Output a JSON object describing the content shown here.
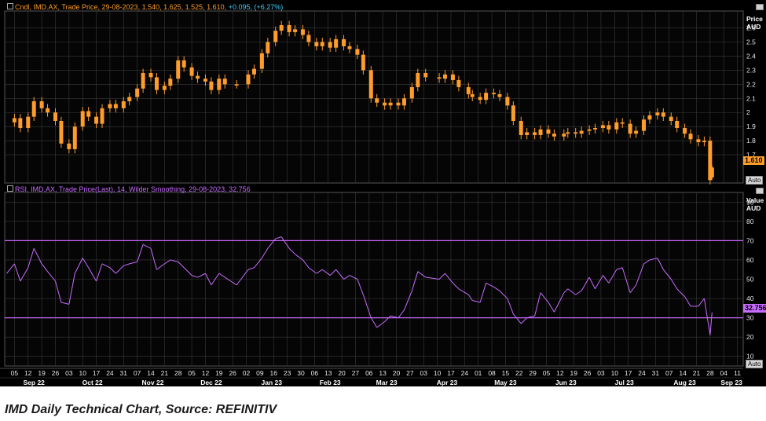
{
  "caption": "IMD Daily Technical Chart, Source: REFINITIV",
  "price_panel": {
    "legend_prefix": "Cndl, IMD.AX, Trade Price, 29-08-2023, 1.540, 1.625, 1.525, 1.610,",
    "legend_change": "+0.095, (+6.27%)",
    "axis_unit_1": "Price",
    "axis_unit_2": "AUD",
    "last_value": "1.610",
    "auto_label": "Auto"
  },
  "rsi_panel": {
    "legend": "RSI, IMD.AX, Trade Price(Last), 14, Wilder Smoothing, 29-08-2023, 32.756",
    "axis_unit_1": "Value",
    "axis_unit_2": "AUD",
    "last_value": "32.756",
    "auto_label": "Auto"
  },
  "colors": {
    "candle": "#ff9d2a",
    "rsi": "#c86bff",
    "background": "#000000",
    "grid": "#3a3a3a"
  },
  "chart_data": [
    {
      "type": "candlestick",
      "title": "",
      "ylabel": "Price AUD",
      "ylim": [
        1.5,
        2.72
      ],
      "yticks": [
        1.7,
        1.8,
        1.9,
        2,
        2.1,
        2.2,
        2.3,
        2.4,
        2.5,
        2.6
      ],
      "grid": true,
      "x_range": [
        "2023-09-01",
        "2023-09-14"
      ],
      "close_series": [
        [
          "2022-09-01",
          1.93
        ],
        [
          "2022-09-05",
          1.96
        ],
        [
          "2022-09-08",
          1.89
        ],
        [
          "2022-09-12",
          1.97
        ],
        [
          "2022-09-15",
          2.08
        ],
        [
          "2022-09-19",
          2.03
        ],
        [
          "2022-09-22",
          2.0
        ],
        [
          "2022-09-26",
          1.94
        ],
        [
          "2022-09-29",
          1.78
        ],
        [
          "2022-10-03",
          1.74
        ],
        [
          "2022-10-06",
          1.9
        ],
        [
          "2022-10-10",
          2.01
        ],
        [
          "2022-10-13",
          1.97
        ],
        [
          "2022-10-17",
          1.92
        ],
        [
          "2022-10-20",
          2.03
        ],
        [
          "2022-10-24",
          2.06
        ],
        [
          "2022-10-27",
          2.03
        ],
        [
          "2022-10-31",
          2.08
        ],
        [
          "2022-11-03",
          2.11
        ],
        [
          "2022-11-07",
          2.17
        ],
        [
          "2022-11-10",
          2.28
        ],
        [
          "2022-11-14",
          2.25
        ],
        [
          "2022-11-17",
          2.16
        ],
        [
          "2022-11-21",
          2.19
        ],
        [
          "2022-11-24",
          2.24
        ],
        [
          "2022-11-28",
          2.37
        ],
        [
          "2022-12-01",
          2.32
        ],
        [
          "2022-12-05",
          2.26
        ],
        [
          "2022-12-08",
          2.24
        ],
        [
          "2022-12-12",
          2.22
        ],
        [
          "2022-12-15",
          2.16
        ],
        [
          "2022-12-19",
          2.24
        ],
        [
          "2022-12-22",
          2.2
        ],
        [
          "2022-12-28",
          2.2
        ],
        [
          "2023-01-03",
          2.27
        ],
        [
          "2023-01-06",
          2.31
        ],
        [
          "2023-01-10",
          2.42
        ],
        [
          "2023-01-13",
          2.5
        ],
        [
          "2023-01-17",
          2.58
        ],
        [
          "2023-01-20",
          2.62
        ],
        [
          "2023-01-24",
          2.57
        ],
        [
          "2023-01-27",
          2.59
        ],
        [
          "2023-01-31",
          2.55
        ],
        [
          "2023-02-03",
          2.5
        ],
        [
          "2023-02-07",
          2.47
        ],
        [
          "2023-02-10",
          2.5
        ],
        [
          "2023-02-14",
          2.46
        ],
        [
          "2023-02-17",
          2.52
        ],
        [
          "2023-02-21",
          2.47
        ],
        [
          "2023-02-24",
          2.45
        ],
        [
          "2023-02-28",
          2.41
        ],
        [
          "2023-03-03",
          2.3
        ],
        [
          "2023-03-07",
          2.1
        ],
        [
          "2023-03-10",
          2.07
        ],
        [
          "2023-03-14",
          2.05
        ],
        [
          "2023-03-17",
          2.07
        ],
        [
          "2023-03-21",
          2.05
        ],
        [
          "2023-03-24",
          2.1
        ],
        [
          "2023-03-28",
          2.18
        ],
        [
          "2023-03-31",
          2.28
        ],
        [
          "2023-04-04",
          2.25
        ],
        [
          "2023-04-11",
          2.24
        ],
        [
          "2023-04-14",
          2.27
        ],
        [
          "2023-04-18",
          2.23
        ],
        [
          "2023-04-21",
          2.18
        ],
        [
          "2023-04-26",
          2.13
        ],
        [
          "2023-04-28",
          2.11
        ],
        [
          "2023-05-02",
          2.09
        ],
        [
          "2023-05-05",
          2.14
        ],
        [
          "2023-05-09",
          2.13
        ],
        [
          "2023-05-12",
          2.11
        ],
        [
          "2023-05-16",
          2.05
        ],
        [
          "2023-05-19",
          1.94
        ],
        [
          "2023-05-23",
          1.84
        ],
        [
          "2023-05-26",
          1.86
        ],
        [
          "2023-05-30",
          1.84
        ],
        [
          "2023-06-02",
          1.88
        ],
        [
          "2023-06-06",
          1.85
        ],
        [
          "2023-06-09",
          1.83
        ],
        [
          "2023-06-14",
          1.85
        ],
        [
          "2023-06-16",
          1.86
        ],
        [
          "2023-06-20",
          1.85
        ],
        [
          "2023-06-23",
          1.87
        ],
        [
          "2023-06-27",
          1.88
        ],
        [
          "2023-06-30",
          1.89
        ],
        [
          "2023-07-04",
          1.91
        ],
        [
          "2023-07-07",
          1.88
        ],
        [
          "2023-07-11",
          1.93
        ],
        [
          "2023-07-14",
          1.92
        ],
        [
          "2023-07-18",
          1.85
        ],
        [
          "2023-07-21",
          1.87
        ],
        [
          "2023-07-25",
          1.95
        ],
        [
          "2023-07-28",
          1.98
        ],
        [
          "2023-08-01",
          2.0
        ],
        [
          "2023-08-04",
          1.97
        ],
        [
          "2023-08-08",
          1.94
        ],
        [
          "2023-08-11",
          1.89
        ],
        [
          "2023-08-15",
          1.85
        ],
        [
          "2023-08-18",
          1.81
        ],
        [
          "2023-08-22",
          1.79
        ],
        [
          "2023-08-25",
          1.8
        ],
        [
          "2023-08-28",
          1.52
        ],
        [
          "2023-08-29",
          1.61
        ]
      ],
      "last_candle": {
        "date": "2023-08-29",
        "open": 1.54,
        "high": 1.625,
        "low": 1.525,
        "close": 1.61
      }
    },
    {
      "type": "line",
      "title": "",
      "ylabel": "Value AUD",
      "ylim": [
        5,
        95
      ],
      "yticks": [
        10,
        20,
        30,
        40,
        50,
        60,
        70,
        80,
        90
      ],
      "grid": true,
      "reference_lines": [
        70,
        30
      ],
      "x_range": [
        "2023-09-01",
        "2023-09-14"
      ],
      "series": [
        {
          "points": [
            [
              "2022-09-01",
              53
            ],
            [
              "2022-09-05",
              58
            ],
            [
              "2022-09-08",
              49
            ],
            [
              "2022-09-12",
              56
            ],
            [
              "2022-09-15",
              66
            ],
            [
              "2022-09-19",
              58
            ],
            [
              "2022-09-22",
              54
            ],
            [
              "2022-09-26",
              49
            ],
            [
              "2022-09-29",
              38
            ],
            [
              "2022-10-03",
              37
            ],
            [
              "2022-10-06",
              53
            ],
            [
              "2022-10-10",
              61
            ],
            [
              "2022-10-13",
              56
            ],
            [
              "2022-10-17",
              49
            ],
            [
              "2022-10-20",
              58
            ],
            [
              "2022-10-24",
              56
            ],
            [
              "2022-10-27",
              53
            ],
            [
              "2022-10-31",
              57
            ],
            [
              "2022-11-03",
              58
            ],
            [
              "2022-11-07",
              59
            ],
            [
              "2022-11-10",
              68
            ],
            [
              "2022-11-14",
              66
            ],
            [
              "2022-11-17",
              55
            ],
            [
              "2022-11-21",
              58
            ],
            [
              "2022-11-24",
              60
            ],
            [
              "2022-11-28",
              59
            ],
            [
              "2022-12-01",
              56
            ],
            [
              "2022-12-05",
              52
            ],
            [
              "2022-12-08",
              51
            ],
            [
              "2022-12-12",
              53
            ],
            [
              "2022-12-15",
              47
            ],
            [
              "2022-12-19",
              53
            ],
            [
              "2022-12-22",
              51
            ],
            [
              "2022-12-28",
              47
            ],
            [
              "2023-01-03",
              55
            ],
            [
              "2023-01-06",
              56
            ],
            [
              "2023-01-10",
              61
            ],
            [
              "2023-01-13",
              66
            ],
            [
              "2023-01-17",
              71
            ],
            [
              "2023-01-20",
              72
            ],
            [
              "2023-01-24",
              66
            ],
            [
              "2023-01-27",
              63
            ],
            [
              "2023-01-31",
              60
            ],
            [
              "2023-02-03",
              56
            ],
            [
              "2023-02-07",
              53
            ],
            [
              "2023-02-10",
              55
            ],
            [
              "2023-02-14",
              52
            ],
            [
              "2023-02-17",
              55
            ],
            [
              "2023-02-21",
              50
            ],
            [
              "2023-02-24",
              52
            ],
            [
              "2023-02-28",
              50
            ],
            [
              "2023-03-03",
              42
            ],
            [
              "2023-03-07",
              30
            ],
            [
              "2023-03-10",
              25
            ],
            [
              "2023-03-14",
              28
            ],
            [
              "2023-03-17",
              31
            ],
            [
              "2023-03-21",
              30
            ],
            [
              "2023-03-24",
              34
            ],
            [
              "2023-03-28",
              44
            ],
            [
              "2023-03-31",
              54
            ],
            [
              "2023-04-04",
              51
            ],
            [
              "2023-04-11",
              50
            ],
            [
              "2023-04-14",
              53
            ],
            [
              "2023-04-18",
              48
            ],
            [
              "2023-04-21",
              45
            ],
            [
              "2023-04-26",
              42
            ],
            [
              "2023-04-28",
              39
            ],
            [
              "2023-05-02",
              38
            ],
            [
              "2023-05-05",
              48
            ],
            [
              "2023-05-09",
              46
            ],
            [
              "2023-05-12",
              44
            ],
            [
              "2023-05-16",
              40
            ],
            [
              "2023-05-19",
              32
            ],
            [
              "2023-05-23",
              27
            ],
            [
              "2023-05-26",
              30
            ],
            [
              "2023-05-30",
              31
            ],
            [
              "2023-06-02",
              43
            ],
            [
              "2023-06-06",
              38
            ],
            [
              "2023-06-09",
              33
            ],
            [
              "2023-06-14",
              43
            ],
            [
              "2023-06-16",
              45
            ],
            [
              "2023-06-20",
              42
            ],
            [
              "2023-06-23",
              44
            ],
            [
              "2023-06-27",
              51
            ],
            [
              "2023-06-30",
              45
            ],
            [
              "2023-07-04",
              52
            ],
            [
              "2023-07-07",
              48
            ],
            [
              "2023-07-11",
              55
            ],
            [
              "2023-07-14",
              56
            ],
            [
              "2023-07-18",
              43
            ],
            [
              "2023-07-21",
              47
            ],
            [
              "2023-07-25",
              58
            ],
            [
              "2023-07-28",
              60
            ],
            [
              "2023-08-01",
              61
            ],
            [
              "2023-08-04",
              55
            ],
            [
              "2023-08-08",
              50
            ],
            [
              "2023-08-11",
              45
            ],
            [
              "2023-08-15",
              41
            ],
            [
              "2023-08-18",
              36
            ],
            [
              "2023-08-22",
              36
            ],
            [
              "2023-08-25",
              40
            ],
            [
              "2023-08-28",
              21
            ],
            [
              "2023-08-29",
              32.756
            ]
          ]
        }
      ]
    }
  ],
  "x_axis": {
    "day_ticks": [
      [
        "2022-09-05",
        "05"
      ],
      [
        "2022-09-12",
        "12"
      ],
      [
        "2022-09-19",
        "19"
      ],
      [
        "2022-09-26",
        "26"
      ],
      [
        "2022-10-03",
        "03"
      ],
      [
        "2022-10-10",
        "10"
      ],
      [
        "2022-10-17",
        "17"
      ],
      [
        "2022-10-24",
        "24"
      ],
      [
        "2022-10-31",
        "31"
      ],
      [
        "2022-11-07",
        "07"
      ],
      [
        "2022-11-14",
        "14"
      ],
      [
        "2022-11-21",
        "21"
      ],
      [
        "2022-11-28",
        "28"
      ],
      [
        "2022-12-05",
        "05"
      ],
      [
        "2022-12-12",
        "12"
      ],
      [
        "2022-12-19",
        "19"
      ],
      [
        "2022-12-26",
        "26"
      ],
      [
        "2023-01-02",
        "02"
      ],
      [
        "2023-01-09",
        "09"
      ],
      [
        "2023-01-16",
        "16"
      ],
      [
        "2023-01-23",
        "23"
      ],
      [
        "2023-01-30",
        "30"
      ],
      [
        "2023-02-06",
        "06"
      ],
      [
        "2023-02-13",
        "13"
      ],
      [
        "2023-02-20",
        "20"
      ],
      [
        "2023-02-27",
        "27"
      ],
      [
        "2023-03-06",
        "06"
      ],
      [
        "2023-03-13",
        "13"
      ],
      [
        "2023-03-20",
        "20"
      ],
      [
        "2023-03-27",
        "27"
      ],
      [
        "2023-04-03",
        "03"
      ],
      [
        "2023-04-10",
        "10"
      ],
      [
        "2023-04-17",
        "17"
      ],
      [
        "2023-04-24",
        "24"
      ],
      [
        "2023-05-01",
        "01"
      ],
      [
        "2023-05-08",
        "08"
      ],
      [
        "2023-05-15",
        "15"
      ],
      [
        "2023-05-22",
        "22"
      ],
      [
        "2023-05-29",
        "29"
      ],
      [
        "2023-06-05",
        "05"
      ],
      [
        "2023-06-12",
        "12"
      ],
      [
        "2023-06-19",
        "19"
      ],
      [
        "2023-06-26",
        "26"
      ],
      [
        "2023-07-03",
        "03"
      ],
      [
        "2023-07-10",
        "10"
      ],
      [
        "2023-07-17",
        "17"
      ],
      [
        "2023-07-24",
        "24"
      ],
      [
        "2023-07-31",
        "31"
      ],
      [
        "2023-08-07",
        "07"
      ],
      [
        "2023-08-14",
        "14"
      ],
      [
        "2023-08-21",
        "21"
      ],
      [
        "2023-08-28",
        "28"
      ],
      [
        "2023-09-04",
        "04"
      ],
      [
        "2023-09-11",
        "11"
      ]
    ],
    "month_labels": [
      [
        "2022-09-15",
        "Sep 22"
      ],
      [
        "2022-10-15",
        "Oct 22"
      ],
      [
        "2022-11-15",
        "Nov 22"
      ],
      [
        "2022-12-15",
        "Dec 22"
      ],
      [
        "2023-01-15",
        "Jan 23"
      ],
      [
        "2023-02-14",
        "Feb 23"
      ],
      [
        "2023-03-15",
        "Mar 23"
      ],
      [
        "2023-04-15",
        "Apr 23"
      ],
      [
        "2023-05-15",
        "May 23"
      ],
      [
        "2023-06-15",
        "Jun 23"
      ],
      [
        "2023-07-15",
        "Jul 23"
      ],
      [
        "2023-08-15",
        "Aug 23"
      ],
      [
        "2023-09-08",
        "Sep 23"
      ]
    ]
  }
}
